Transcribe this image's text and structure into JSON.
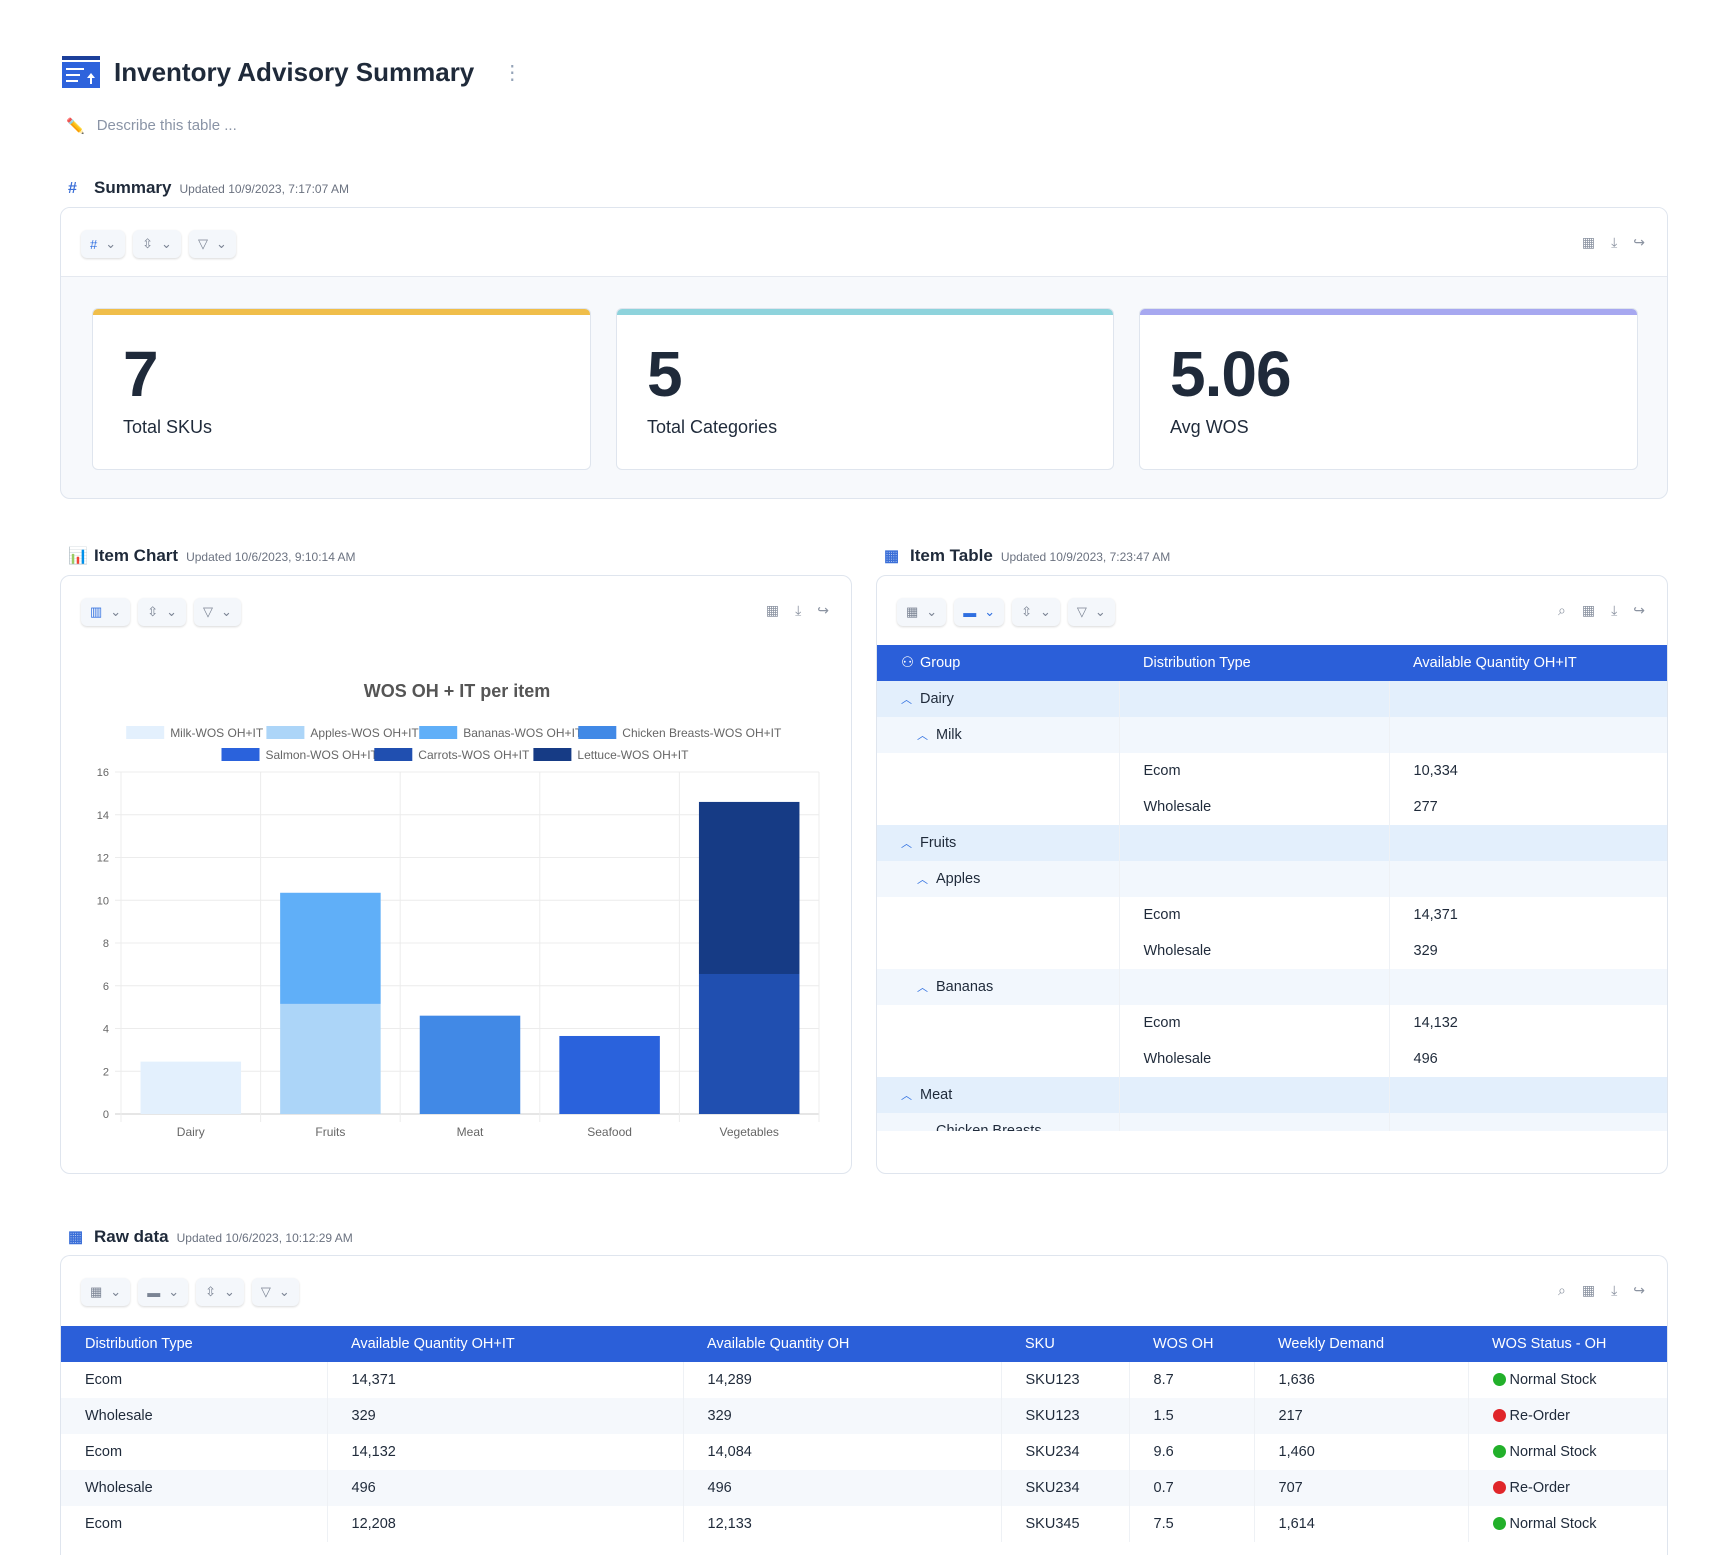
{
  "header": {
    "title": "Inventory Advisory Summary",
    "describe_placeholder": "Describe this table ..."
  },
  "summary": {
    "title": "Summary",
    "updated": "Updated 10/9/2023, 7:17:07 AM",
    "cards": [
      {
        "value": "7",
        "label": "Total SKUs",
        "color": "#f0be4a"
      },
      {
        "value": "5",
        "label": "Total Categories",
        "color": "#8ed3dc"
      },
      {
        "value": "5.06",
        "label": "Avg WOS",
        "color": "#a7a8f0"
      }
    ]
  },
  "item_chart": {
    "title": "Item Chart",
    "updated": "Updated 10/6/2023, 9:10:14 AM"
  },
  "chart_data": {
    "type": "bar",
    "stacked": true,
    "title": "WOS OH + IT per item",
    "categories": [
      "Dairy",
      "Fruits",
      "Meat",
      "Seafood",
      "Vegetables"
    ],
    "ylim": [
      0,
      16
    ],
    "yticks": [
      0,
      2,
      4,
      6,
      8,
      10,
      12,
      14,
      16
    ],
    "legend": "top",
    "series": [
      {
        "name": "Milk-WOS OH+IT",
        "color": "#e3f0fd",
        "values": [
          2.45,
          0,
          0,
          0,
          0
        ]
      },
      {
        "name": "Apples-WOS OH+IT",
        "color": "#acd5f8",
        "values": [
          0,
          5.15,
          0,
          0,
          0
        ]
      },
      {
        "name": "Bananas-WOS OH+IT",
        "color": "#60aff8",
        "values": [
          0,
          5.2,
          0,
          0,
          0
        ]
      },
      {
        "name": "Chicken Breasts-WOS OH+IT",
        "color": "#4189e6",
        "values": [
          0,
          0,
          4.6,
          0,
          0
        ]
      },
      {
        "name": "Salmon-WOS OH+IT",
        "color": "#2a62dc",
        "values": [
          0,
          0,
          0,
          3.65,
          0
        ]
      },
      {
        "name": "Carrots-WOS OH+IT",
        "color": "#204fb0",
        "values": [
          0,
          0,
          0,
          0,
          6.55
        ]
      },
      {
        "name": "Lettuce-WOS OH+IT",
        "color": "#163b85",
        "values": [
          0,
          0,
          0,
          0,
          8.05
        ]
      }
    ]
  },
  "item_table": {
    "title": "Item Table",
    "updated": "Updated 10/9/2023, 7:23:47 AM",
    "columns": [
      "Group",
      "Distribution Type",
      "Available Quantity OH+IT"
    ],
    "rows": [
      {
        "level": 1,
        "group": "Dairy",
        "dist": "",
        "qty": ""
      },
      {
        "level": 2,
        "group": "Milk",
        "dist": "",
        "qty": ""
      },
      {
        "level": 3,
        "group": "",
        "dist": "Ecom",
        "qty": "10,334"
      },
      {
        "level": 3,
        "group": "",
        "dist": "Wholesale",
        "qty": "277"
      },
      {
        "level": 1,
        "group": "Fruits",
        "dist": "",
        "qty": ""
      },
      {
        "level": 2,
        "group": "Apples",
        "dist": "",
        "qty": ""
      },
      {
        "level": 3,
        "group": "",
        "dist": "Ecom",
        "qty": "14,371"
      },
      {
        "level": 3,
        "group": "",
        "dist": "Wholesale",
        "qty": "329"
      },
      {
        "level": 2,
        "group": "Bananas",
        "dist": "",
        "qty": ""
      },
      {
        "level": 3,
        "group": "",
        "dist": "Ecom",
        "qty": "14,132"
      },
      {
        "level": 3,
        "group": "",
        "dist": "Wholesale",
        "qty": "496"
      },
      {
        "level": 1,
        "group": "Meat",
        "dist": "",
        "qty": ""
      },
      {
        "level": 2,
        "group": "Chicken Breasts",
        "dist": "",
        "qty": ""
      }
    ]
  },
  "raw_data": {
    "title": "Raw data",
    "updated": "Updated 10/6/2023, 10:12:29 AM",
    "columns": [
      "Distribution Type",
      "Available Quantity OH+IT",
      "Available Quantity OH",
      "SKU",
      "WOS OH",
      "Weekly Demand",
      "WOS Status - OH"
    ],
    "rows": [
      [
        "Ecom",
        "14,371",
        "14,289",
        "SKU123",
        "8.7",
        "1,636",
        "Normal Stock"
      ],
      [
        "Wholesale",
        "329",
        "329",
        "SKU123",
        "1.5",
        "217",
        "Re-Order"
      ],
      [
        "Ecom",
        "14,132",
        "14,084",
        "SKU234",
        "9.6",
        "1,460",
        "Normal Stock"
      ],
      [
        "Wholesale",
        "496",
        "496",
        "SKU234",
        "0.7",
        "707",
        "Re-Order"
      ],
      [
        "Ecom",
        "12,208",
        "12,133",
        "SKU345",
        "7.5",
        "1,614",
        "Normal Stock"
      ]
    ],
    "status_colors": {
      "Normal Stock": "#22b02a",
      "Re-Order": "#e0262a"
    }
  }
}
